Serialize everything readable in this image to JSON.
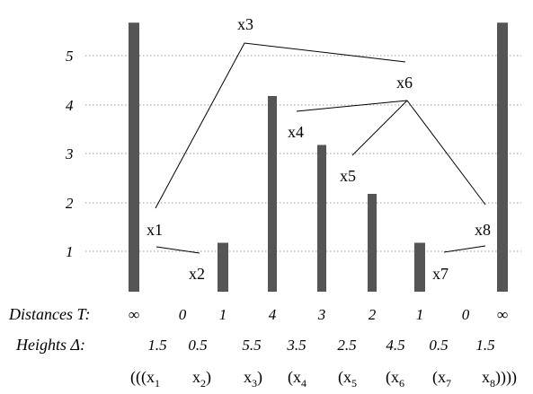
{
  "y_axis": {
    "ticks": [
      "1",
      "2",
      "3",
      "4",
      "5"
    ]
  },
  "bars": [
    {
      "label": "∞",
      "height": 5.5
    },
    {
      "label": "0",
      "height": 0
    },
    {
      "label": "1",
      "height": 1
    },
    {
      "label": "4",
      "height": 4
    },
    {
      "label": "3",
      "height": 3
    },
    {
      "label": "2",
      "height": 2
    },
    {
      "label": "1",
      "height": 1
    },
    {
      "label": "0",
      "height": 0
    },
    {
      "label": "∞",
      "height": 5.5
    }
  ],
  "nodes": [
    "x1",
    "x2",
    "x3",
    "x4",
    "x5",
    "x6",
    "x7",
    "x8"
  ],
  "rows": {
    "distances_label": "Distances T:",
    "heights_label": "Heights Δ:",
    "heights": [
      "1.5",
      "0.5",
      "5.5",
      "3.5",
      "2.5",
      "4.5",
      "0.5",
      "1.5"
    ]
  },
  "expression": {
    "items": [
      {
        "prefix": "(((x",
        "sub": "1"
      },
      {
        "prefix": "x",
        "sub": "2",
        "suffix": ")"
      },
      {
        "prefix": "x",
        "sub": "3",
        "suffix": ")"
      },
      {
        "prefix": "(x",
        "sub": "4"
      },
      {
        "prefix": "(x",
        "sub": "5"
      },
      {
        "prefix": "(x",
        "sub": "6"
      },
      {
        "prefix": "(x",
        "sub": "7"
      },
      {
        "prefix": "x",
        "sub": "8",
        "suffix": "))))"
      }
    ]
  }
}
